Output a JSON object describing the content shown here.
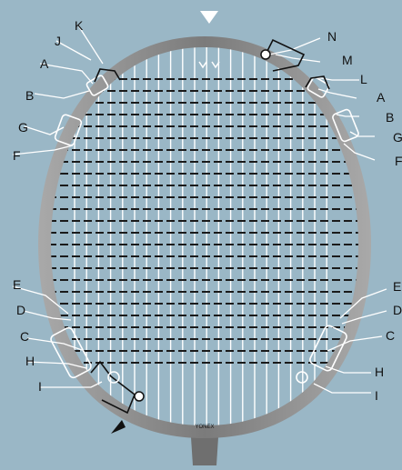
{
  "colors": {
    "background": "#9ab7c6",
    "frame": "#8f8f8f",
    "string": "#ffffff",
    "cross_string": "#1a1a1a",
    "guide": "#ffffff"
  },
  "labels": {
    "A": "A",
    "B": "B",
    "C": "C",
    "D": "D",
    "E": "E",
    "F": "F",
    "G": "G",
    "H": "H",
    "I": "I",
    "J": "J",
    "K": "K",
    "L": "L",
    "M": "M",
    "N": "N"
  },
  "logo": "YONEX",
  "markers": {
    "top": "start-triangle-icon",
    "bottom_left": "finish-triangle-icon"
  }
}
